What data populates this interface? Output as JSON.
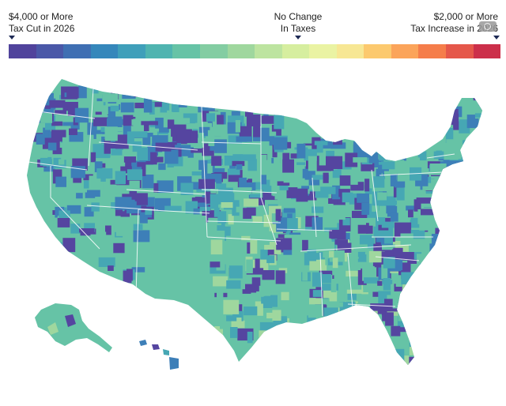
{
  "legend": {
    "left_line1": "$4,000 or More",
    "left_line2": "Tax Cut in 2026",
    "center_line1": "No Change",
    "center_line2": "In Taxes",
    "right_line1": "$2,000 or More",
    "right_line2": "Tax Increase in 2026",
    "scale_colors": [
      "#50439c",
      "#4a58a8",
      "#3f6fb3",
      "#3587bb",
      "#3f9fba",
      "#4fb4b0",
      "#66c3a6",
      "#83cda2",
      "#9fd79e",
      "#bde4a0",
      "#d6ee9f",
      "#eaf3a3",
      "#f7e794",
      "#fcc96e",
      "#fba45a",
      "#f57d4a",
      "#e5574a",
      "#cc2f4a"
    ]
  },
  "colors": {
    "deep_cut": "#5545a0",
    "blue": "#3d7fb8",
    "teal": "#46a7b4",
    "green": "#66c3a6",
    "light_green": "#9fd79e",
    "state_border": "#ffffff"
  },
  "icons": [
    "fullscreen-icon"
  ]
}
